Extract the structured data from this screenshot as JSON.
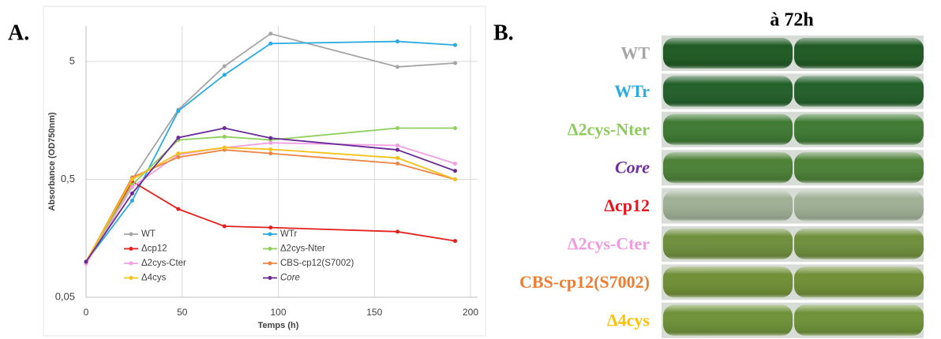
{
  "panel_labels": {
    "a": "A.",
    "b": "B."
  },
  "chart_data": {
    "type": "line",
    "x_label": "Temps (h)",
    "y_label": "Absorbance (OD750nm)",
    "x": [
      0,
      24,
      48,
      72,
      96,
      162,
      192
    ],
    "xlim": [
      0,
      200
    ],
    "xticks": [
      0,
      50,
      100,
      150,
      200
    ],
    "ylim": [
      0.05,
      10
    ],
    "log_y": true,
    "yticks": [
      {
        "value": 0.05,
        "label": "0,05"
      },
      {
        "value": 0.5,
        "label": "0,5"
      },
      5
    ],
    "grid": true,
    "series": [
      {
        "name": "WT",
        "color": "#a5a5a5",
        "values": [
          0.1,
          0.5,
          1.95,
          4.56,
          8.6,
          4.5,
          4.85
        ]
      },
      {
        "name": "WTr",
        "color": "#29aae1",
        "values": [
          0.1,
          0.33,
          1.9,
          3.85,
          7.1,
          7.4,
          6.9
        ]
      },
      {
        "name": "Δcp12",
        "color": "#e3201b",
        "values": [
          0.1,
          0.48,
          0.28,
          0.2,
          0.195,
          0.18,
          0.15
        ]
      },
      {
        "name": "Δ2cys-Nter",
        "color": "#8fcf5c",
        "values": [
          0.1,
          0.45,
          1.08,
          1.15,
          1.08,
          1.36,
          1.36
        ]
      },
      {
        "name": "Δ2cys-Cter",
        "color": "#f29ee2",
        "values": [
          0.096,
          0.43,
          0.81,
          0.93,
          1.02,
          0.97,
          0.68
        ]
      },
      {
        "name": "CBS-cp12(S7002)",
        "color": "#ee8442",
        "values": [
          0.1,
          0.52,
          0.77,
          0.89,
          0.83,
          0.68,
          0.5
        ]
      },
      {
        "name": "Δ4cys",
        "color": "#f6c01a",
        "values": [
          0.1,
          0.5,
          0.83,
          0.93,
          0.9,
          0.76,
          0.5
        ]
      },
      {
        "name": "Core",
        "color": "#6a2a96",
        "values": [
          0.1,
          0.38,
          1.13,
          1.36,
          1.12,
          0.89,
          0.59
        ]
      }
    ]
  },
  "photo_panel": {
    "title": "à 72h",
    "rows": [
      {
        "label": "WT",
        "color": "#a6a6a6"
      },
      {
        "label": "WTr",
        "color": "#29abe2"
      },
      {
        "label": "Δ2cys-Nter",
        "color": "#8dcc5a"
      },
      {
        "label": "Core",
        "color": "#7030a0"
      },
      {
        "label": "Δcp12",
        "color": "#e8141b"
      },
      {
        "label": "Δ2cys-Cter",
        "color": "#f09be0"
      },
      {
        "label": "CBS-cp12(S7002)",
        "color": "#ed7d31"
      },
      {
        "label": "Δ4cys",
        "color": "#ffc000"
      }
    ]
  }
}
